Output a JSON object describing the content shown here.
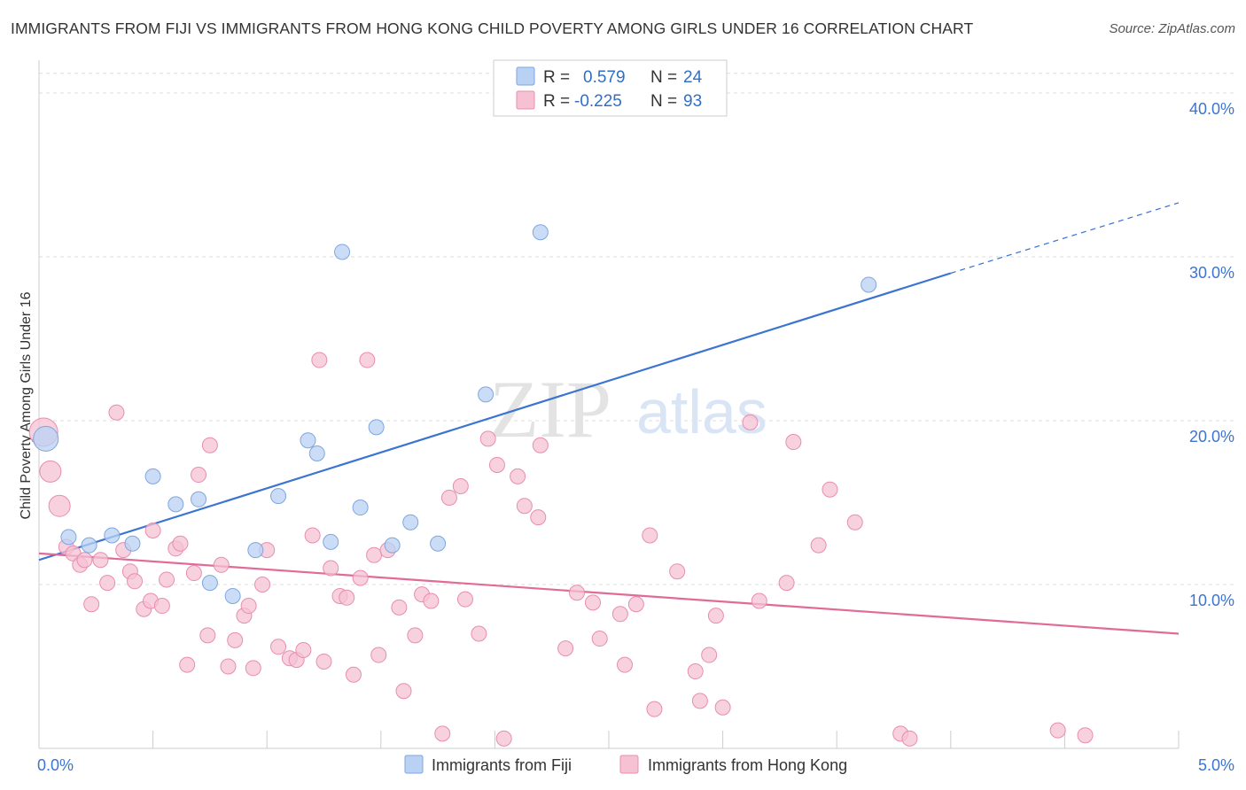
{
  "title": "IMMIGRANTS FROM FIJI VS IMMIGRANTS FROM HONG KONG CHILD POVERTY AMONG GIRLS UNDER 16 CORRELATION CHART",
  "source": "Source: ZipAtlas.com",
  "watermark": {
    "zip": "ZIP",
    "atlas": "atlas"
  },
  "colors": {
    "fiji": "#3b74d1",
    "fiji_fill": "#b9d1f3",
    "hk": "#e06b97",
    "hk_fill": "#f6c1d3",
    "tick_blue": "#3b74d1",
    "grid": "#dddddd"
  },
  "legend": {
    "r_label": "R =",
    "n_label": "N =",
    "fiji": {
      "r": "0.579",
      "n": "24"
    },
    "hk": {
      "r": "-0.225",
      "n": "93"
    }
  },
  "chart_data": {
    "type": "scatter",
    "title": "IMMIGRANTS FROM FIJI VS IMMIGRANTS FROM HONG KONG CHILD POVERTY AMONG GIRLS UNDER 16 CORRELATION CHART",
    "xlabel": "",
    "ylabel": "Child Poverty Among Girls Under 16",
    "xlim": [
      0,
      5
    ],
    "ylim": [
      0,
      42
    ],
    "x_tick_labels": [
      "0.0%",
      "5.0%"
    ],
    "y_ticks": [
      10,
      20,
      30,
      40
    ],
    "y_tick_labels": [
      "10.0%",
      "20.0%",
      "30.0%",
      "40.0%"
    ],
    "grid": "horizontal dashed",
    "legend_placement": "top-center",
    "series": [
      {
        "name": "Immigrants from Fiji",
        "color": "#3b74d1",
        "trend": {
          "x": [
            0,
            4.0
          ],
          "y": [
            11.5,
            29.0
          ],
          "dashed_to": [
            5.0,
            33.3
          ]
        },
        "x": [
          0.03,
          0.13,
          0.22,
          0.32,
          0.41,
          0.5,
          0.6,
          0.7,
          0.75,
          0.85,
          0.95,
          1.05,
          1.18,
          1.22,
          1.28,
          1.33,
          1.41,
          1.48,
          1.55,
          1.63,
          1.75,
          1.96,
          2.2,
          3.64
        ],
        "y": [
          18.9,
          12.9,
          12.4,
          13.0,
          12.5,
          16.6,
          14.9,
          15.2,
          10.1,
          9.3,
          12.1,
          15.4,
          18.8,
          18.0,
          12.6,
          30.3,
          14.7,
          19.6,
          12.4,
          13.8,
          12.5,
          21.6,
          31.5,
          28.3
        ]
      },
      {
        "name": "Immigrants from Hong Kong",
        "color": "#e06b97",
        "trend": {
          "x": [
            0,
            5.0
          ],
          "y": [
            11.9,
            7.0
          ]
        },
        "x": [
          0.02,
          0.05,
          0.09,
          0.12,
          0.15,
          0.18,
          0.2,
          0.23,
          0.27,
          0.3,
          0.34,
          0.37,
          0.4,
          0.42,
          0.46,
          0.49,
          0.5,
          0.54,
          0.56,
          0.6,
          0.62,
          0.65,
          0.68,
          0.7,
          0.74,
          0.75,
          0.8,
          0.83,
          0.86,
          0.9,
          0.92,
          0.94,
          0.98,
          1.0,
          1.05,
          1.1,
          1.13,
          1.16,
          1.2,
          1.23,
          1.25,
          1.28,
          1.32,
          1.35,
          1.38,
          1.41,
          1.44,
          1.47,
          1.49,
          1.53,
          1.58,
          1.6,
          1.65,
          1.68,
          1.72,
          1.77,
          1.8,
          1.85,
          1.87,
          1.93,
          1.97,
          2.01,
          2.04,
          2.1,
          2.13,
          2.19,
          2.2,
          2.31,
          2.36,
          2.43,
          2.46,
          2.55,
          2.57,
          2.62,
          2.68,
          2.7,
          2.8,
          2.88,
          2.9,
          2.94,
          2.97,
          3.0,
          3.12,
          3.16,
          3.28,
          3.31,
          3.42,
          3.47,
          3.58,
          3.78,
          3.82,
          4.47,
          4.59
        ],
        "y": [
          19.3,
          16.9,
          14.8,
          12.3,
          11.9,
          11.2,
          11.5,
          8.8,
          11.5,
          10.1,
          20.5,
          12.1,
          10.8,
          10.2,
          8.5,
          9.0,
          13.3,
          8.7,
          10.3,
          12.2,
          12.5,
          5.1,
          10.7,
          16.7,
          6.9,
          18.5,
          11.2,
          5.0,
          6.6,
          8.1,
          8.7,
          4.9,
          10.0,
          12.1,
          6.2,
          5.5,
          5.4,
          6.0,
          13.0,
          23.7,
          5.3,
          11.0,
          9.3,
          9.2,
          4.5,
          10.4,
          23.7,
          11.8,
          5.7,
          12.1,
          8.6,
          3.5,
          6.9,
          9.4,
          9.0,
          0.9,
          15.3,
          16.0,
          9.1,
          7.0,
          18.9,
          17.3,
          0.6,
          16.6,
          14.8,
          14.1,
          18.5,
          6.1,
          9.5,
          8.9,
          6.7,
          8.2,
          5.1,
          8.8,
          13.0,
          2.4,
          10.8,
          4.7,
          2.9,
          5.7,
          8.1,
          2.5,
          19.9,
          9.0,
          10.1,
          18.7,
          12.4,
          15.8,
          13.8,
          0.9,
          0.6,
          1.1,
          0.8
        ]
      }
    ]
  }
}
